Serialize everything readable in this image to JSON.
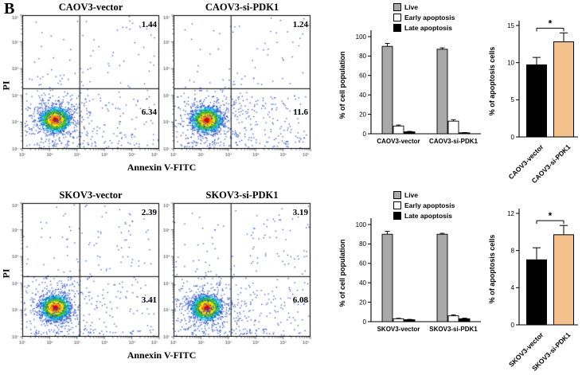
{
  "panel_label": "B",
  "chart_data": [
    {
      "type": "scatter",
      "subtype": "flow-cytometry-density",
      "title": "CAOV3-vector",
      "xlabel": "Annexin V-FITC",
      "ylabel": "PI",
      "x_scale": "log",
      "y_scale": "log",
      "quadrants": {
        "upper_right": "1.44",
        "lower_right": "6.34"
      }
    },
    {
      "type": "scatter",
      "subtype": "flow-cytometry-density",
      "title": "CAOV3-si-PDK1",
      "xlabel": "Annexin V-FITC",
      "ylabel": "PI",
      "x_scale": "log",
      "y_scale": "log",
      "quadrants": {
        "upper_right": "1.24",
        "lower_right": "11.6"
      }
    },
    {
      "type": "bar",
      "categories": [
        "CAOV3-vector",
        "CAOV3-si-PDK1"
      ],
      "series": [
        {
          "name": "Live",
          "color": "#a9a9a9",
          "values": [
            90,
            87
          ],
          "errors": [
            3,
            1.5
          ]
        },
        {
          "name": "Early apoptosis",
          "color": "#ffffff",
          "values": [
            8,
            13
          ],
          "errors": [
            1,
            1.5
          ]
        },
        {
          "name": "Late apoptosis",
          "color": "#000000",
          "values": [
            2,
            1
          ],
          "errors": [
            0.5,
            0.3
          ]
        }
      ],
      "ylabel": "% of cell population",
      "ylim": [
        0,
        100
      ],
      "yticks": [
        0,
        20,
        40,
        60,
        80,
        100
      ],
      "legend_position": "top-left"
    },
    {
      "type": "bar",
      "categories": [
        "CAOV3-vector",
        "CAOV3-si-PDK1"
      ],
      "values": [
        9.7,
        12.8
      ],
      "errors": [
        1.0,
        1.2
      ],
      "colors": [
        "#000000",
        "#f4c18d"
      ],
      "ylabel": "% of apoptosis cells",
      "ylim": [
        0,
        15
      ],
      "yticks": [
        0,
        5,
        10,
        15
      ],
      "significance": "*"
    },
    {
      "type": "scatter",
      "subtype": "flow-cytometry-density",
      "title": "SKOV3-vector",
      "xlabel": "Annexin V-FITC",
      "ylabel": "PI",
      "x_scale": "log",
      "y_scale": "log",
      "quadrants": {
        "upper_right": "2.39",
        "lower_right": "3.41"
      }
    },
    {
      "type": "scatter",
      "subtype": "flow-cytometry-density",
      "title": "SKOV3-si-PDK1",
      "xlabel": "Annexin V-FITC",
      "ylabel": "PI",
      "x_scale": "log",
      "y_scale": "log",
      "quadrants": {
        "upper_right": "3.19",
        "lower_right": "6.08"
      }
    },
    {
      "type": "bar",
      "categories": [
        "SKOV3-vector",
        "SKOV3-si-PDK1"
      ],
      "series": [
        {
          "name": "Live",
          "color": "#a9a9a9",
          "values": [
            90,
            90
          ],
          "errors": [
            3,
            1
          ]
        },
        {
          "name": "Early apoptosis",
          "color": "#ffffff",
          "values": [
            3,
            6
          ],
          "errors": [
            0.5,
            1
          ]
        },
        {
          "name": "Late apoptosis",
          "color": "#000000",
          "values": [
            2,
            3
          ],
          "errors": [
            0.4,
            0.6
          ]
        }
      ],
      "ylabel": "% of cell population",
      "ylim": [
        0,
        100
      ],
      "yticks": [
        0,
        20,
        40,
        60,
        80,
        100
      ],
      "legend_position": "top-left"
    },
    {
      "type": "bar",
      "categories": [
        "SKOV3-vector",
        "SKOV3-si-PDK1"
      ],
      "values": [
        7.0,
        9.7
      ],
      "errors": [
        1.3,
        1.0
      ],
      "colors": [
        "#000000",
        "#f4c18d"
      ],
      "ylabel": "% of apoptosis cells",
      "ylim": [
        0,
        12
      ],
      "yticks": [
        0,
        4,
        8,
        12
      ],
      "significance": "*"
    }
  ]
}
